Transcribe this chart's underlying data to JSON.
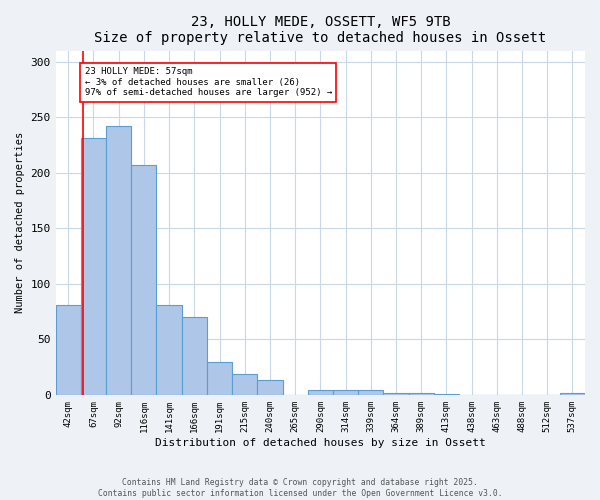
{
  "title": "23, HOLLY MEDE, OSSETT, WF5 9TB",
  "subtitle": "Size of property relative to detached houses in Ossett",
  "xlabel": "Distribution of detached houses by size in Ossett",
  "ylabel": "Number of detached properties",
  "categories": [
    "42sqm",
    "67sqm",
    "92sqm",
    "116sqm",
    "141sqm",
    "166sqm",
    "191sqm",
    "215sqm",
    "240sqm",
    "265sqm",
    "290sqm",
    "314sqm",
    "339sqm",
    "364sqm",
    "389sqm",
    "413sqm",
    "438sqm",
    "463sqm",
    "488sqm",
    "512sqm",
    "537sqm"
  ],
  "values": [
    81,
    231,
    242,
    207,
    81,
    70,
    30,
    19,
    13,
    0,
    4,
    4,
    4,
    2,
    2,
    1,
    0,
    0,
    0,
    0,
    2
  ],
  "bar_color": "#aec6e8",
  "bar_edge_color": "#5a9fd4",
  "red_line_x": 0.58,
  "annotation_title": "23 HOLLY MEDE: 57sqm",
  "annotation_line1": "← 3% of detached houses are smaller (26)",
  "annotation_line2": "97% of semi-detached houses are larger (952) →",
  "ylim": [
    0,
    310
  ],
  "yticks": [
    0,
    50,
    100,
    150,
    200,
    250,
    300
  ],
  "footer_line1": "Contains HM Land Registry data © Crown copyright and database right 2025.",
  "footer_line2": "Contains public sector information licensed under the Open Government Licence v3.0.",
  "bg_color": "#eef2f7",
  "plot_bg_color": "#ffffff",
  "grid_color": "#c8d8e8"
}
